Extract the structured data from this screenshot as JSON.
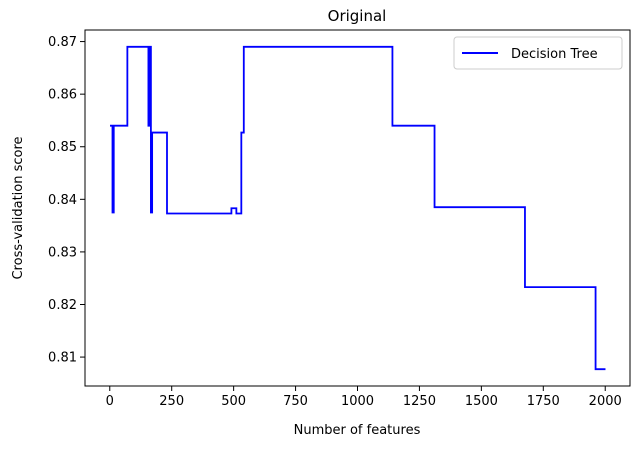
{
  "chart_data": {
    "type": "line",
    "title": "Original",
    "xlabel": "Number of features",
    "ylabel": "Cross-validation score",
    "xlim": [
      -100,
      2100
    ],
    "ylim": [
      0.8045,
      0.8722
    ],
    "x_ticks": [
      0,
      250,
      500,
      750,
      1000,
      1250,
      1500,
      1750,
      2000
    ],
    "y_ticks": [
      0.81,
      0.82,
      0.83,
      0.84,
      0.85,
      0.86,
      0.87
    ],
    "x_tick_labels": [
      "0",
      "250",
      "500",
      "750",
      "1000",
      "1250",
      "1500",
      "1750",
      "2000"
    ],
    "y_tick_labels": [
      "0.81",
      "0.82",
      "0.83",
      "0.84",
      "0.85",
      "0.86",
      "0.87"
    ],
    "grid": false,
    "legend_position": "top-right",
    "series": [
      {
        "name": "Decision Tree",
        "color": "#0000ff",
        "x": [
          1,
          11,
          11,
          16,
          16,
          30,
          30,
          71,
          71,
          156,
          156,
          161,
          161,
          166,
          166,
          171,
          171,
          176,
          176,
          231,
          231,
          491,
          491,
          496,
          496,
          511,
          511,
          531,
          531,
          536,
          536,
          541,
          541,
          1141,
          1141,
          1311,
          1311,
          1676,
          1676,
          1961,
          1961,
          2001
        ],
        "y": [
          0.854,
          0.854,
          0.8375,
          0.8375,
          0.854,
          0.854,
          0.854,
          0.854,
          0.869,
          0.869,
          0.854,
          0.854,
          0.869,
          0.869,
          0.8375,
          0.8375,
          0.8527,
          0.8527,
          0.8527,
          0.8527,
          0.8373,
          0.8373,
          0.8383,
          0.8383,
          0.8383,
          0.8383,
          0.8373,
          0.8373,
          0.8527,
          0.8527,
          0.8527,
          0.8527,
          0.869,
          0.869,
          0.854,
          0.854,
          0.8385,
          0.8385,
          0.8233,
          0.8233,
          0.8077,
          0.8077
        ]
      }
    ]
  }
}
